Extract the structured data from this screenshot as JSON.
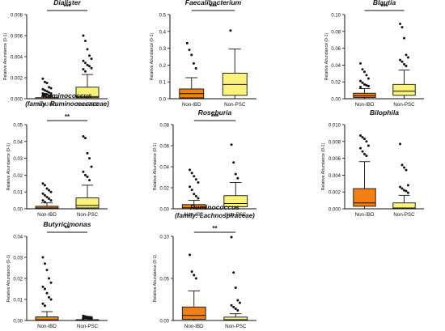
{
  "figure": {
    "box_colors": {
      "Non-IBD": "#f07f14",
      "Non-PSC": "#fbf27a"
    },
    "whisker_color": "#111111"
  },
  "chart_data": [
    {
      "type": "box",
      "title": "Dialister",
      "subtitle": "",
      "ylabel": "Relative Abundance (0-1)",
      "ylim": [
        0,
        0.008
      ],
      "yticks": [
        0.0,
        0.002,
        0.004,
        0.006,
        0.008
      ],
      "ytick_labels": [
        "0.000",
        "0.002",
        "0.004",
        "0.006",
        "0.008"
      ],
      "categories": [
        "Non-IBD",
        "Non-PSC"
      ],
      "significance": "***",
      "boxes": [
        {
          "name": "Non-IBD",
          "q1": 0.0,
          "median": 0.0,
          "q3": 0.0001,
          "whisker_low": 0.0,
          "whisker_high": 0.0002,
          "outliers": [
            0.0019,
            0.0016,
            0.0015,
            0.0011,
            0.001,
            0.0009,
            0.0008,
            0.0007,
            0.0006,
            0.0005,
            0.0005,
            0.0004,
            0.0004,
            0.0003,
            0.0003,
            0.0003
          ]
        },
        {
          "name": "Non-PSC",
          "q1": 0.0001,
          "median": 0.0002,
          "q3": 0.0011,
          "whisker_low": 0.0,
          "whisker_high": 0.0023,
          "outliers": [
            0.006,
            0.0055,
            0.0047,
            0.0041,
            0.0038,
            0.0036,
            0.0034,
            0.0032,
            0.0031,
            0.0029,
            0.0028,
            0.0026
          ]
        }
      ]
    },
    {
      "type": "box",
      "title": "Faecalibacterium",
      "subtitle": "",
      "ylabel": "Relative Abundance (0-1)",
      "ylim": [
        0,
        0.5
      ],
      "yticks": [
        0.0,
        0.1,
        0.2,
        0.3,
        0.4,
        0.5
      ],
      "ytick_labels": [
        "0.0",
        "0.1",
        "0.2",
        "0.3",
        "0.4",
        "0.5"
      ],
      "categories": [
        "Non-IBD",
        "Non-PSC"
      ],
      "significance": "***",
      "boxes": [
        {
          "name": "Non-IBD",
          "q1": 0.005,
          "median": 0.03,
          "q3": 0.058,
          "whisker_low": 0.0,
          "whisker_high": 0.125,
          "outliers": [
            0.33,
            0.29,
            0.26,
            0.21,
            0.18
          ]
        },
        {
          "name": "Non-PSC",
          "q1": 0.02,
          "median": 0.085,
          "q3": 0.152,
          "whisker_low": 0.0,
          "whisker_high": 0.295,
          "outliers": [
            0.405
          ]
        }
      ]
    },
    {
      "type": "box",
      "title": "Blautia",
      "subtitle": "",
      "ylabel": "Relative Abundance (0-1)",
      "ylim": [
        0,
        0.1
      ],
      "yticks": [
        0.0,
        0.02,
        0.04,
        0.06,
        0.08,
        0.1
      ],
      "ytick_labels": [
        "0.00",
        "0.02",
        "0.04",
        "0.06",
        "0.08",
        "0.10"
      ],
      "categories": [
        "Non-IBD",
        "Non-PSC"
      ],
      "significance": "***",
      "boxes": [
        {
          "name": "Non-IBD",
          "q1": 0.0015,
          "median": 0.0035,
          "q3": 0.0065,
          "whisker_low": 0.0,
          "whisker_high": 0.012,
          "outliers": [
            0.042,
            0.035,
            0.032,
            0.028,
            0.024,
            0.021,
            0.019,
            0.017,
            0.016,
            0.015,
            0.014
          ]
        },
        {
          "name": "Non-PSC",
          "q1": 0.004,
          "median": 0.009,
          "q3": 0.017,
          "whisker_low": 0.0,
          "whisker_high": 0.034,
          "outliers": [
            0.089,
            0.085,
            0.072,
            0.052,
            0.049,
            0.046,
            0.044,
            0.041,
            0.039
          ]
        }
      ]
    },
    {
      "type": "box",
      "title": "Ruminococcus",
      "subtitle": "(family: Ruminococcaceae)",
      "ylabel": "Relative Abundance (0-1)",
      "ylim": [
        0,
        0.05
      ],
      "yticks": [
        0.0,
        0.01,
        0.02,
        0.03,
        0.04,
        0.05
      ],
      "ytick_labels": [
        "0.00",
        "0.01",
        "0.02",
        "0.03",
        "0.04",
        "0.05"
      ],
      "categories": [
        "Non-IBD",
        "Non-PSC"
      ],
      "significance": "**",
      "boxes": [
        {
          "name": "Non-IBD",
          "q1": 0.0,
          "median": 0.0005,
          "q3": 0.0015,
          "whisker_low": 0.0,
          "whisker_high": 0.0035,
          "outliers": [
            0.015,
            0.014,
            0.012,
            0.011,
            0.01,
            0.009,
            0.008,
            0.007,
            0.006,
            0.005,
            0.005,
            0.004
          ]
        },
        {
          "name": "Non-PSC",
          "q1": 0.0005,
          "median": 0.002,
          "q3": 0.0065,
          "whisker_low": 0.0,
          "whisker_high": 0.014,
          "outliers": [
            0.043,
            0.042,
            0.033,
            0.03,
            0.025,
            0.022,
            0.02,
            0.019,
            0.017
          ]
        }
      ]
    },
    {
      "type": "box",
      "title": "Roseburia",
      "subtitle": "",
      "ylabel": "Relative Abundance (0-1)",
      "ylim": [
        0,
        0.08
      ],
      "yticks": [
        0.0,
        0.02,
        0.04,
        0.06,
        0.08
      ],
      "ytick_labels": [
        "0.00",
        "0.02",
        "0.04",
        "0.06",
        "0.08"
      ],
      "categories": [
        "Non-IBD",
        "Non-PSC"
      ],
      "significance": "***",
      "boxes": [
        {
          "name": "Non-IBD",
          "q1": 0.0,
          "median": 0.001,
          "q3": 0.004,
          "whisker_low": 0.0,
          "whisker_high": 0.008,
          "outliers": [
            0.037,
            0.034,
            0.031,
            0.028,
            0.025,
            0.021,
            0.018,
            0.014,
            0.012,
            0.01
          ]
        },
        {
          "name": "Non-PSC",
          "q1": 0.002,
          "median": 0.005,
          "q3": 0.0125,
          "whisker_low": 0.0,
          "whisker_high": 0.025,
          "outliers": [
            0.061,
            0.044,
            0.033,
            0.029
          ]
        }
      ]
    },
    {
      "type": "box",
      "title": "Bilophila",
      "subtitle": "",
      "ylabel": "Relative Abundance (0-1)",
      "ylim": [
        0,
        0.01
      ],
      "yticks": [
        0.0,
        0.002,
        0.004,
        0.006,
        0.008,
        0.01
      ],
      "ytick_labels": [
        "0.000",
        "0.002",
        "0.004",
        "0.006",
        "0.008",
        "0.010"
      ],
      "categories": [
        "Non-IBD",
        "Non-PSC"
      ],
      "significance": "",
      "boxes": [
        {
          "name": "Non-IBD",
          "q1": 0.0003,
          "median": 0.0007,
          "q3": 0.0024,
          "whisker_low": 0.0,
          "whisker_high": 0.0056,
          "outliers": [
            0.0087,
            0.0085,
            0.0083,
            0.008,
            0.0075,
            0.0072,
            0.0068,
            0.0065,
            0.0063
          ]
        },
        {
          "name": "Non-PSC",
          "q1": 0.0,
          "median": 0.0001,
          "q3": 0.0007,
          "whisker_low": 0.0,
          "whisker_high": 0.0016,
          "outliers": [
            0.0077,
            0.0052,
            0.0049,
            0.0046,
            0.0028,
            0.0026,
            0.0024,
            0.0022,
            0.0021,
            0.0019
          ]
        }
      ]
    },
    {
      "type": "box",
      "title": "Butyricimonas",
      "subtitle": "",
      "ylabel": "Relative Abundance (0-1)",
      "ylim": [
        0,
        0.04
      ],
      "yticks": [
        0.0,
        0.01,
        0.02,
        0.03,
        0.04
      ],
      "ytick_labels": [
        "0.00",
        "0.01",
        "0.02",
        "0.03",
        "0.04"
      ],
      "categories": [
        "Non-IBD",
        "Non-PSC"
      ],
      "significance": "**",
      "boxes": [
        {
          "name": "Non-IBD",
          "q1": 0.0,
          "median": 0.0003,
          "q3": 0.0017,
          "whisker_low": 0.0,
          "whisker_high": 0.0042,
          "outliers": [
            0.03,
            0.027,
            0.024,
            0.02,
            0.018,
            0.016,
            0.015,
            0.013,
            0.011,
            0.01,
            0.008,
            0.007
          ]
        },
        {
          "name": "Non-PSC",
          "q1": 0.0,
          "median": 0.0001,
          "q3": 0.0004,
          "whisker_low": 0.0,
          "whisker_high": 0.0009,
          "outliers": [
            0.0022,
            0.0019,
            0.0017,
            0.0016,
            0.0015,
            0.0014,
            0.0013,
            0.0012,
            0.0011,
            0.0011,
            0.001
          ]
        }
      ]
    },
    {
      "type": "box",
      "title": "Ruminococcus",
      "subtitle": "(family: Lachnospiraceae)",
      "ylabel": "Relative Abundance (0-1)",
      "ylim": [
        0,
        0.1
      ],
      "yticks": [
        0.0,
        0.05,
        0.1
      ],
      "ytick_labels": [
        "0.00",
        "0.05",
        "0.10"
      ],
      "categories": [
        "Non-IBD",
        "Non-PSC"
      ],
      "significance": "**",
      "boxes": [
        {
          "name": "Non-IBD",
          "q1": 0.0015,
          "median": 0.006,
          "q3": 0.016,
          "whisker_low": 0.0,
          "whisker_high": 0.035,
          "outliers": [
            0.078,
            0.058,
            0.054,
            0.05
          ]
        },
        {
          "name": "Non-PSC",
          "q1": 0.0,
          "median": 0.001,
          "q3": 0.004,
          "whisker_low": 0.0,
          "whisker_high": 0.008,
          "outliers": [
            0.099,
            0.057,
            0.039,
            0.024,
            0.021,
            0.018,
            0.016,
            0.014,
            0.012
          ]
        }
      ]
    }
  ]
}
